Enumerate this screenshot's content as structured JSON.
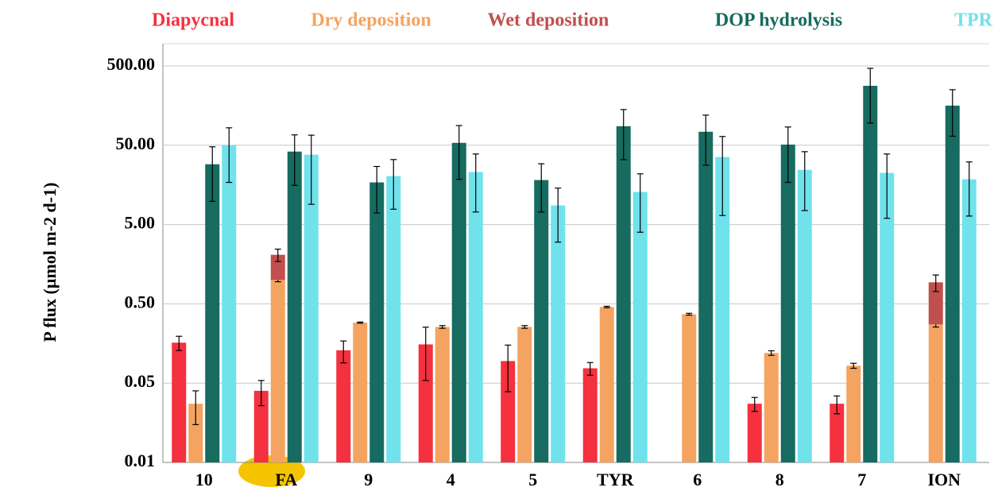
{
  "chart_data": {
    "type": "bar",
    "stacked_series": [
      "Wet deposition"
    ],
    "stack_on": "Dry deposition",
    "y_label": "P flux (µmol m-2 d-1)",
    "log_scale": true,
    "grid": true,
    "ylim": [
      0.005,
      500
    ],
    "yticks": [
      {
        "value": 0.005,
        "label": "0.01"
      },
      0.05,
      {
        "value": 0.5,
        "label": "0.50"
      },
      {
        "value": 5,
        "label": "5.00"
      },
      {
        "value": 50,
        "label": "50.00"
      },
      {
        "value": 500,
        "label": "500.00"
      }
    ],
    "categories": [
      "10",
      "FA",
      "9",
      "4",
      "5",
      "TYR",
      "6",
      "8",
      "7",
      "ION"
    ],
    "series": [
      {
        "name": "Diapycnal",
        "color": "#f5303f",
        "values": [
          0.162,
          0.04,
          0.13,
          0.154,
          0.095,
          0.077,
          null,
          0.0275,
          0.0275,
          null
        ],
        "errors": [
          0.033,
          0.014,
          0.04,
          0.1,
          0.056,
          0.014,
          null,
          0.0055,
          0.007,
          null
        ]
      },
      {
        "name": "Dry deposition",
        "color": "#f4a460",
        "values": [
          0.0275,
          1.0,
          0.29,
          0.256,
          0.256,
          0.456,
          0.37,
          0.12,
          0.083,
          0.275
        ],
        "errors": [
          0.0125,
          0.05,
          0.005,
          0.01,
          0.01,
          0.01,
          0.01,
          0.008,
          0.006,
          0.02
        ]
      },
      {
        "name": "Wet deposition",
        "color": "#c0504d",
        "values": [
          null,
          1.08,
          null,
          null,
          null,
          null,
          null,
          null,
          null,
          0.66
        ],
        "errors": [
          null,
          0.37,
          null,
          null,
          null,
          null,
          null,
          null,
          null,
          0.22
        ]
      },
      {
        "name": "DOP hydrolysis",
        "color": "#176b60",
        "values": [
          28.8,
          41.6,
          17,
          53.6,
          18.2,
          86.9,
          74,
          51,
          281,
          158
        ],
        "errors": [
          19,
          26,
          10,
          35,
          11,
          54,
          46,
          34,
          186,
          93
        ]
      },
      {
        "name": "TPR",
        "color": "#70e2ec",
        "values": [
          50,
          38,
          20.4,
          23,
          8.7,
          12.9,
          35.5,
          24.5,
          22.4,
          18.6
        ],
        "errors": [
          33,
          29,
          12.6,
          15.8,
          5.7,
          8.9,
          29,
          17,
          16.4,
          12.2
        ]
      }
    ]
  }
}
